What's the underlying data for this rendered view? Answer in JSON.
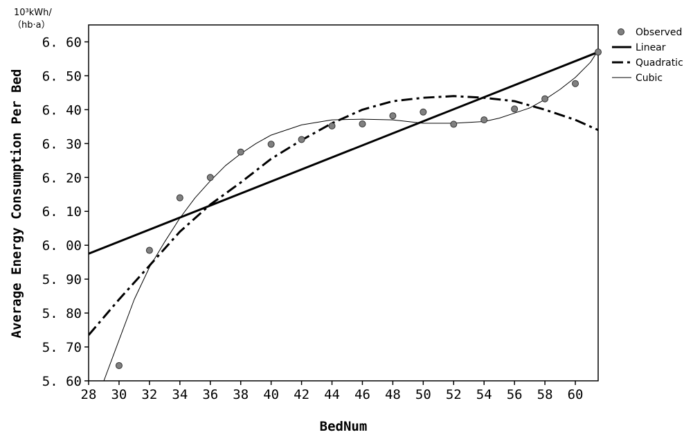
{
  "chart_data": {
    "type": "scatter",
    "title": "",
    "xlabel": "BedNum",
    "ylabel": "Average Energy Consumption Per Bed",
    "y_unit_line1": "10³kWh/",
    "y_unit_line2": "（hb·a）",
    "xlim": [
      28,
      61.5
    ],
    "ylim": [
      5.6,
      6.65
    ],
    "x_ticks": [
      28,
      30,
      32,
      34,
      36,
      38,
      40,
      42,
      44,
      46,
      48,
      50,
      52,
      54,
      56,
      58,
      60
    ],
    "y_ticks": [
      "5.60",
      "5.70",
      "5.80",
      "5.90",
      "6.00",
      "6.10",
      "6.20",
      "6.30",
      "6.40",
      "6.50",
      "6.60"
    ],
    "legend_position": "top-right",
    "series": [
      {
        "name": "Observed",
        "kind": "points",
        "x": [
          30,
          32,
          34,
          36,
          38,
          40,
          42,
          44,
          46,
          48,
          50,
          52,
          54,
          56,
          58,
          60,
          61.5
        ],
        "y": [
          5.645,
          5.985,
          6.14,
          6.2,
          6.275,
          6.298,
          6.312,
          6.352,
          6.358,
          6.382,
          6.393,
          6.357,
          6.37,
          6.402,
          6.432,
          6.477,
          6.57
        ]
      },
      {
        "name": "Linear",
        "kind": "line",
        "x": [
          28,
          61.5
        ],
        "y": [
          5.975,
          6.57
        ]
      },
      {
        "name": "Quadratic",
        "kind": "line",
        "x": [
          28,
          30,
          32,
          34,
          36,
          38,
          40,
          42,
          44,
          46,
          48,
          50,
          52,
          54,
          56,
          58,
          60,
          61.5
        ],
        "y": [
          5.735,
          5.84,
          5.94,
          6.04,
          6.12,
          6.185,
          6.255,
          6.31,
          6.36,
          6.4,
          6.425,
          6.435,
          6.44,
          6.435,
          6.425,
          6.4,
          6.37,
          6.34
        ]
      },
      {
        "name": "Cubic",
        "kind": "line",
        "x": [
          29,
          30,
          31,
          32,
          33,
          34,
          35,
          36,
          37,
          38,
          39,
          40,
          42,
          44,
          46,
          48,
          50,
          52,
          54,
          55,
          56,
          57,
          58,
          59,
          60,
          61,
          61.5
        ],
        "y": [
          5.6,
          5.72,
          5.84,
          5.935,
          6.01,
          6.08,
          6.14,
          6.19,
          6.235,
          6.27,
          6.3,
          6.325,
          6.355,
          6.37,
          6.372,
          6.37,
          6.36,
          6.36,
          6.365,
          6.375,
          6.39,
          6.405,
          6.43,
          6.46,
          6.495,
          6.54,
          6.575
        ]
      }
    ]
  }
}
